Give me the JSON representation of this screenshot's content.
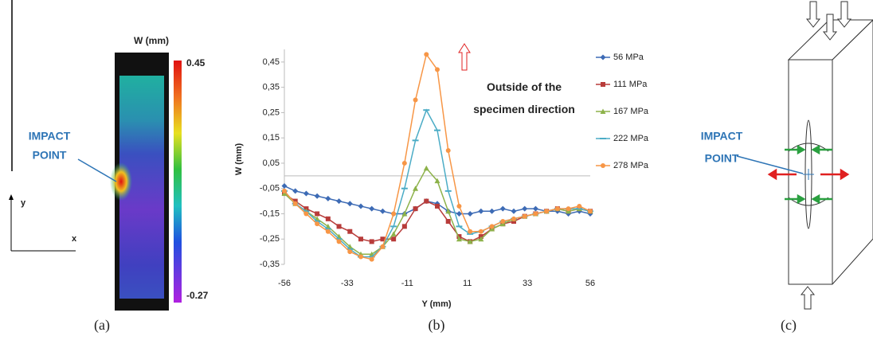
{
  "chart_data": {
    "type": "line",
    "x_label": "Y (mm)",
    "y_label": "W (mm)",
    "caption": "(b)",
    "annotation": "Outside of the specimen direction",
    "annotation_color": "#e02020",
    "x": [
      -56,
      -52,
      -48,
      -44,
      -40,
      -36,
      -32,
      -28,
      -24,
      -20,
      -16,
      -12,
      -8,
      -4,
      0,
      4,
      8,
      12,
      16,
      20,
      24,
      28,
      32,
      36,
      40,
      44,
      48,
      52,
      56
    ],
    "xlim": [
      -56,
      56
    ],
    "xticks": [
      -56,
      -33,
      -11,
      11,
      33,
      56
    ],
    "ylim": [
      -0.35,
      0.5
    ],
    "yticks": [
      {
        "value": -0.35,
        "label": "-0,35"
      },
      {
        "value": -0.25,
        "label": "-0,25"
      },
      {
        "value": -0.15,
        "label": "-0,15"
      },
      {
        "value": -0.05,
        "label": "-0,05"
      },
      {
        "value": 0.05,
        "label": "0,05"
      },
      {
        "value": 0.15,
        "label": "0,15"
      },
      {
        "value": 0.25,
        "label": "0,25"
      },
      {
        "value": 0.35,
        "label": "0,35"
      },
      {
        "value": 0.45,
        "label": "0,45"
      }
    ],
    "series": [
      {
        "name": "56 MPa",
        "color": "#3d6bb5",
        "marker": "diamond",
        "values": [
          -0.04,
          -0.06,
          -0.07,
          -0.08,
          -0.09,
          -0.1,
          -0.11,
          -0.12,
          -0.13,
          -0.14,
          -0.15,
          -0.15,
          -0.13,
          -0.1,
          -0.11,
          -0.14,
          -0.15,
          -0.15,
          -0.14,
          -0.14,
          -0.13,
          -0.14,
          -0.13,
          -0.13,
          -0.14,
          -0.14,
          -0.15,
          -0.14,
          -0.15
        ]
      },
      {
        "name": "111 MPa",
        "color": "#b83c3a",
        "marker": "square",
        "values": [
          -0.07,
          -0.1,
          -0.13,
          -0.15,
          -0.17,
          -0.2,
          -0.22,
          -0.25,
          -0.26,
          -0.25,
          -0.25,
          -0.2,
          -0.13,
          -0.1,
          -0.12,
          -0.18,
          -0.24,
          -0.26,
          -0.24,
          -0.21,
          -0.19,
          -0.18,
          -0.16,
          -0.15,
          -0.14,
          -0.13,
          -0.14,
          -0.13,
          -0.14
        ]
      },
      {
        "name": "167 MPa",
        "color": "#8db24a",
        "marker": "triangle",
        "values": [
          -0.07,
          -0.11,
          -0.14,
          -0.17,
          -0.2,
          -0.24,
          -0.28,
          -0.31,
          -0.31,
          -0.28,
          -0.23,
          -0.15,
          -0.05,
          0.03,
          -0.02,
          -0.14,
          -0.25,
          -0.26,
          -0.25,
          -0.21,
          -0.19,
          -0.17,
          -0.16,
          -0.15,
          -0.14,
          -0.13,
          -0.14,
          -0.13,
          -0.14
        ]
      },
      {
        "name": "222 MPa",
        "color": "#4bacc6",
        "marker": "dash",
        "values": [
          -0.06,
          -0.11,
          -0.14,
          -0.18,
          -0.21,
          -0.25,
          -0.29,
          -0.32,
          -0.32,
          -0.28,
          -0.2,
          -0.05,
          0.14,
          0.26,
          0.18,
          -0.06,
          -0.2,
          -0.23,
          -0.22,
          -0.2,
          -0.18,
          -0.17,
          -0.16,
          -0.15,
          -0.14,
          -0.13,
          -0.13,
          -0.13,
          -0.14
        ]
      },
      {
        "name": "278 MPa",
        "color": "#f79646",
        "marker": "circle",
        "values": [
          -0.06,
          -0.11,
          -0.15,
          -0.19,
          -0.22,
          -0.26,
          -0.3,
          -0.32,
          -0.33,
          -0.28,
          -0.15,
          0.05,
          0.3,
          0.48,
          0.42,
          0.1,
          -0.12,
          -0.22,
          -0.22,
          -0.2,
          -0.18,
          -0.17,
          -0.16,
          -0.15,
          -0.14,
          -0.13,
          -0.13,
          -0.12,
          -0.14
        ]
      }
    ]
  },
  "panel_a": {
    "title": "W (mm)",
    "clim": [
      -0.27,
      0.45
    ],
    "colorbar_ticks": [
      0.45,
      -0.27
    ],
    "label": [
      "IMPACT",
      "POINT"
    ],
    "axis_y": "y",
    "axis_x": "x",
    "caption": "(a)"
  },
  "panel_c": {
    "label": [
      "IMPACT",
      "POINT"
    ],
    "caption": "(c)"
  }
}
